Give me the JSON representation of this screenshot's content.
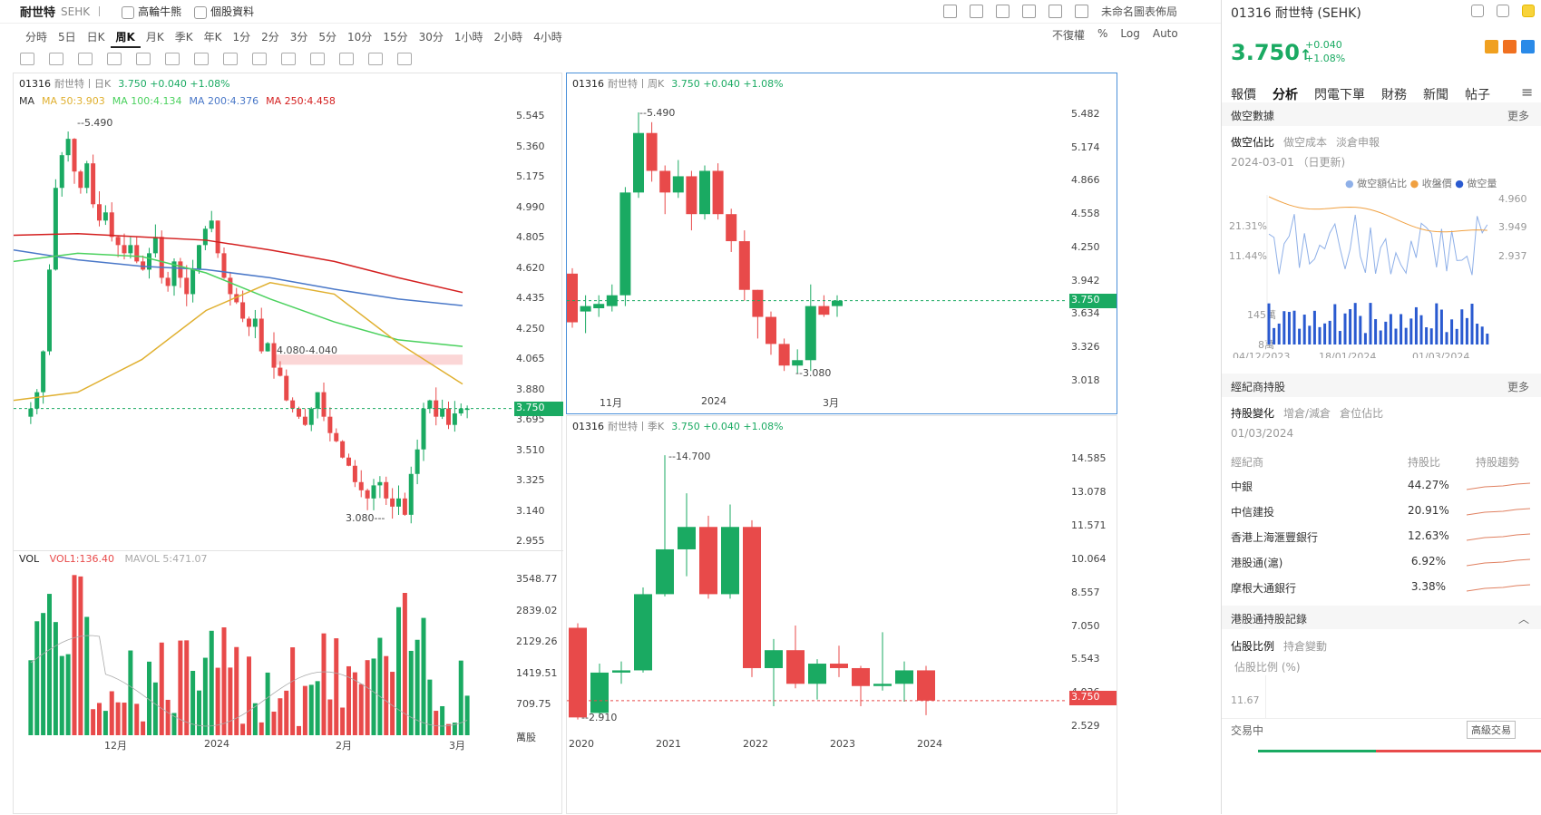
{
  "header": {
    "name": "耐世特",
    "ticker": "SEHK",
    "links": [
      "高輪牛熊",
      "個股資料"
    ],
    "layout": "未命名圖表佈局"
  },
  "periods": [
    "分時",
    "5日",
    "日K",
    "周K",
    "月K",
    "季K",
    "年K",
    "1分",
    "2分",
    "3分",
    "5分",
    "10分",
    "15分",
    "30分",
    "1小時",
    "2小時",
    "4小時"
  ],
  "active_period": "周K",
  "options": [
    "不復權",
    "%",
    "Log",
    "Auto"
  ],
  "main_chart": {
    "header": {
      "code": "01316",
      "name": "耐世特丨日K",
      "quote": "3.750 +0.040 +1.08%"
    },
    "ma_legend": [
      {
        "t": "MA",
        "c": "#333"
      },
      {
        "t": "MA 50:3.903",
        "c": "#e0b030"
      },
      {
        "t": "MA 100:4.134",
        "c": "#4bd15e"
      },
      {
        "t": "MA 200:4.376",
        "c": "#4a78c8"
      },
      {
        "t": "MA 250:4.458",
        "c": "#d42020"
      }
    ],
    "y_labels": [
      "5.545",
      "5.360",
      "5.175",
      "4.990",
      "4.805",
      "4.620",
      "4.435",
      "4.250",
      "4.065",
      "3.880",
      "3.695",
      "3.510",
      "3.325",
      "3.140",
      "2.955"
    ],
    "price_tag": "3.750",
    "annotations": {
      "high": "--5.490",
      "low": "3.080---",
      "zone": "4.080-4.040"
    },
    "vol_header": {
      "label": "VOL",
      "vol": "VOL1:136.40",
      "mavol": "MAVOL 5:471.07"
    },
    "vol_labels": [
      "3548.77",
      "2839.02",
      "2129.26",
      "1419.51",
      "709.75",
      "萬股"
    ],
    "x_labels": [
      "12月",
      "2024",
      "2月",
      "3月"
    ]
  },
  "weekly_chart": {
    "header": {
      "code": "01316",
      "name": "耐世特丨周K",
      "quote": "3.750 +0.040 +1.08%"
    },
    "y_labels": [
      "5.482",
      "5.174",
      "4.866",
      "4.558",
      "4.250",
      "3.942",
      "3.634",
      "3.326",
      "3.018"
    ],
    "price_tag": "3.750",
    "annotations": {
      "high": "--5.490",
      "low": "--3.080"
    },
    "x_labels": [
      "11月",
      "2024",
      "3月"
    ]
  },
  "quarterly_chart": {
    "header": {
      "code": "01316",
      "name": "耐世特丨季K",
      "quote": "3.750 +0.040 +1.08%"
    },
    "y_labels": [
      "14.585",
      "13.078",
      "11.571",
      "10.064",
      "8.557",
      "7.050",
      "5.543",
      "4.036",
      "2.529"
    ],
    "price_tag": "3.750",
    "annotations": {
      "high": "--14.700",
      "low": "--2.910"
    },
    "x_labels": [
      "2020",
      "2021",
      "2022",
      "2023",
      "2024"
    ]
  },
  "right": {
    "title": "01316 耐世特 (SEHK)",
    "price": "3.750",
    "arrow": "↑",
    "change": "+0.040",
    "pct": "+1.08%",
    "tabs": [
      "報價",
      "分析",
      "閃電下單",
      "財務",
      "新聞",
      "帖子"
    ],
    "active_tab": "分析",
    "short": {
      "title": "做空數據",
      "more": "更多",
      "subtabs": [
        "做空佔比",
        "做空成本",
        "淡倉申報"
      ],
      "date": "2024-03-01 （日更新)",
      "legend": [
        "做空額佔比",
        "收盤價",
        "做空量"
      ],
      "ly": [
        "21.31%",
        "11.44%"
      ],
      "ry": [
        "4.960",
        "3.949",
        "2.937"
      ],
      "vy": [
        "145萬",
        "8萬"
      ],
      "x": [
        "04/12/2023",
        "18/01/2024",
        "01/03/2024"
      ]
    },
    "broker": {
      "title": "經紀商持股",
      "more": "更多",
      "subtabs": [
        "持股變化",
        "增倉/減倉",
        "倉位佔比"
      ],
      "date": "01/03/2024",
      "cols": [
        "經紀商",
        "持股比",
        "持股趨勢"
      ],
      "rows": [
        {
          "name": "中銀",
          "pct": "44.27%"
        },
        {
          "name": "中信建投",
          "pct": "20.91%"
        },
        {
          "name": "香港上海滙豐銀行",
          "pct": "12.63%"
        },
        {
          "name": "港股通(滬)",
          "pct": "6.92%"
        },
        {
          "name": "摩根大通銀行",
          "pct": "3.38%"
        }
      ]
    },
    "hk_connect": {
      "title": "港股通持股記錄",
      "subtabs": [
        "佔股比例",
        "持倉變動"
      ],
      "label": "佔股比例 (%)",
      "val": "11.67"
    },
    "trade": {
      "label": "交易中",
      "btn": "高級交易"
    }
  },
  "colors": {
    "up": "#1aaa62",
    "down": "#e84a4a"
  }
}
